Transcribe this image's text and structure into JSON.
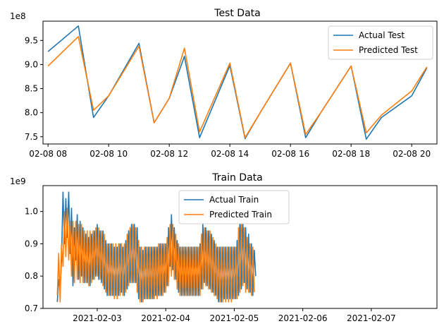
{
  "chart_data": [
    {
      "type": "line",
      "title": "Test Data",
      "xlabel": "",
      "ylabel": "",
      "y_offset_label": "1e8",
      "y_scale": 100000000,
      "ylim": [
        7.35,
        9.9
      ],
      "xlim": [
        "2021-02-08 07:50",
        "2021-02-08 20:50"
      ],
      "x_tick_labels": [
        "02-08 08",
        "02-08 10",
        "02-08 12",
        "02-08 14",
        "02-08 16",
        "02-08 18",
        "02-08 20"
      ],
      "y_tick_labels": [
        "7.5",
        "8.0",
        "8.5",
        "9.0",
        "9.5"
      ],
      "y_tick_values": [
        7.5,
        8.0,
        8.5,
        9.0,
        9.5
      ],
      "legend_position": "top-right",
      "grid": false,
      "x": [
        "08:00",
        "09:00",
        "09:30",
        "10:00",
        "11:00",
        "11:30",
        "12:00",
        "12:30",
        "13:00",
        "14:00",
        "14:30",
        "15:00",
        "16:00",
        "16:30",
        "17:00",
        "18:00",
        "18:30",
        "19:00",
        "20:00",
        "20:30"
      ],
      "series": [
        {
          "name": "Actual Test",
          "color": "#1f77b4",
          "values": [
            9.27,
            9.8,
            7.9,
            8.35,
            9.44,
            7.79,
            8.3,
            9.17,
            7.48,
            8.98,
            7.46,
            8.0,
            9.03,
            7.48,
            8.0,
            8.97,
            7.45,
            7.9,
            8.35,
            8.93
          ]
        },
        {
          "name": "Predicted Test",
          "color": "#ff7f0e",
          "values": [
            8.97,
            9.58,
            8.05,
            8.35,
            9.38,
            7.79,
            8.3,
            9.34,
            7.6,
            9.03,
            7.48,
            8.0,
            9.03,
            7.55,
            8.0,
            8.97,
            7.58,
            7.95,
            8.45,
            8.95
          ]
        }
      ]
    },
    {
      "type": "line",
      "title": "Train Data",
      "xlabel": "",
      "ylabel": "",
      "y_offset_label": "1e9",
      "y_scale": 1000000000,
      "ylim": [
        0.7,
        1.08
      ],
      "xlim": [
        "2021-02-02 05:00",
        "2021-02-07 23:00"
      ],
      "x_tick_labels": [
        "2021-02-03",
        "2021-02-04",
        "2021-02-05",
        "2021-02-06",
        "2021-02-07"
      ],
      "y_tick_labels": [
        "0.7",
        "0.8",
        "0.9",
        "1.0"
      ],
      "y_tick_values": [
        0.7,
        0.8,
        0.9,
        1.0
      ],
      "legend_position": "top-center",
      "grid": false,
      "x_start": "2021-02-02 10:00",
      "x_step_hours": 0.5,
      "series": [
        {
          "name": "Actual Train",
          "color": "#1f77b4",
          "values": [
            0.72,
            0.79,
            0.76,
            0.85,
            1.06,
            0.9,
            1.04,
            0.92,
            1.06,
            0.87,
            1.01,
            0.77,
            0.95,
            0.85,
            0.99,
            0.79,
            0.97,
            0.8,
            0.95,
            0.78,
            0.93,
            0.78,
            0.92,
            0.77,
            0.93,
            0.79,
            0.94,
            0.8,
            0.96,
            0.79,
            0.94,
            0.78,
            0.94,
            0.76,
            0.91,
            0.74,
            0.9,
            0.74,
            0.9,
            0.74,
            0.89,
            0.74,
            0.89,
            0.74,
            0.9,
            0.75,
            0.89,
            0.74,
            0.91,
            0.76,
            0.94,
            0.78,
            0.96,
            0.78,
            0.96,
            0.78,
            0.95,
            0.73,
            0.89,
            0.72,
            0.88,
            0.73,
            0.89,
            0.73,
            0.89,
            0.73,
            0.89,
            0.73,
            0.89,
            0.74,
            0.89,
            0.74,
            0.9,
            0.74,
            0.9,
            0.75,
            0.9,
            0.77,
            0.95,
            0.83,
            0.99,
            0.82,
            0.95,
            0.79,
            0.91,
            0.75,
            0.89,
            0.74,
            0.89,
            0.74,
            0.89,
            0.74,
            0.89,
            0.74,
            0.89,
            0.74,
            0.89,
            0.74,
            0.89,
            0.74,
            0.9,
            0.76,
            0.96,
            0.78,
            0.95,
            0.77,
            0.94,
            0.76,
            0.93,
            0.75,
            0.91,
            0.74,
            0.89,
            0.72,
            0.89,
            0.72,
            0.89,
            0.73,
            0.89,
            0.73,
            0.89,
            0.73,
            0.89,
            0.73,
            0.89,
            0.73,
            0.91,
            0.74,
            0.98,
            0.76,
            0.97,
            0.78,
            0.95,
            0.76,
            0.93,
            0.75,
            0.9,
            0.74,
            0.88,
            0.8
          ]
        },
        {
          "name": "Predicted Train",
          "color": "#ff7f0e",
          "values": [
            0.74,
            0.87,
            0.72,
            0.9,
            0.83,
            1.0,
            0.86,
            1.01,
            0.85,
            0.97,
            0.8,
            0.97,
            0.78,
            0.97,
            0.79,
            0.96,
            0.78,
            0.96,
            0.78,
            0.94,
            0.78,
            0.94,
            0.77,
            0.94,
            0.78,
            0.94,
            0.79,
            0.95,
            0.8,
            0.95,
            0.79,
            0.94,
            0.77,
            0.93,
            0.75,
            0.9,
            0.74,
            0.9,
            0.74,
            0.9,
            0.73,
            0.9,
            0.73,
            0.9,
            0.74,
            0.9,
            0.74,
            0.9,
            0.75,
            0.93,
            0.77,
            0.95,
            0.78,
            0.96,
            0.78,
            0.95,
            0.75,
            0.91,
            0.72,
            0.89,
            0.72,
            0.89,
            0.73,
            0.89,
            0.73,
            0.89,
            0.73,
            0.89,
            0.73,
            0.89,
            0.73,
            0.9,
            0.74,
            0.9,
            0.74,
            0.9,
            0.75,
            0.92,
            0.77,
            0.96,
            0.8,
            0.96,
            0.79,
            0.93,
            0.76,
            0.9,
            0.74,
            0.89,
            0.74,
            0.89,
            0.74,
            0.89,
            0.74,
            0.89,
            0.74,
            0.89,
            0.74,
            0.89,
            0.74,
            0.89,
            0.74,
            0.93,
            0.76,
            0.95,
            0.77,
            0.94,
            0.76,
            0.94,
            0.75,
            0.92,
            0.74,
            0.9,
            0.73,
            0.89,
            0.72,
            0.89,
            0.72,
            0.89,
            0.72,
            0.89,
            0.72,
            0.89,
            0.72,
            0.89,
            0.73,
            0.89,
            0.73,
            0.95,
            0.75,
            0.96,
            0.77,
            0.95,
            0.75,
            0.92,
            0.75,
            0.9,
            0.74,
            0.89,
            0.75
          ]
        }
      ]
    }
  ]
}
